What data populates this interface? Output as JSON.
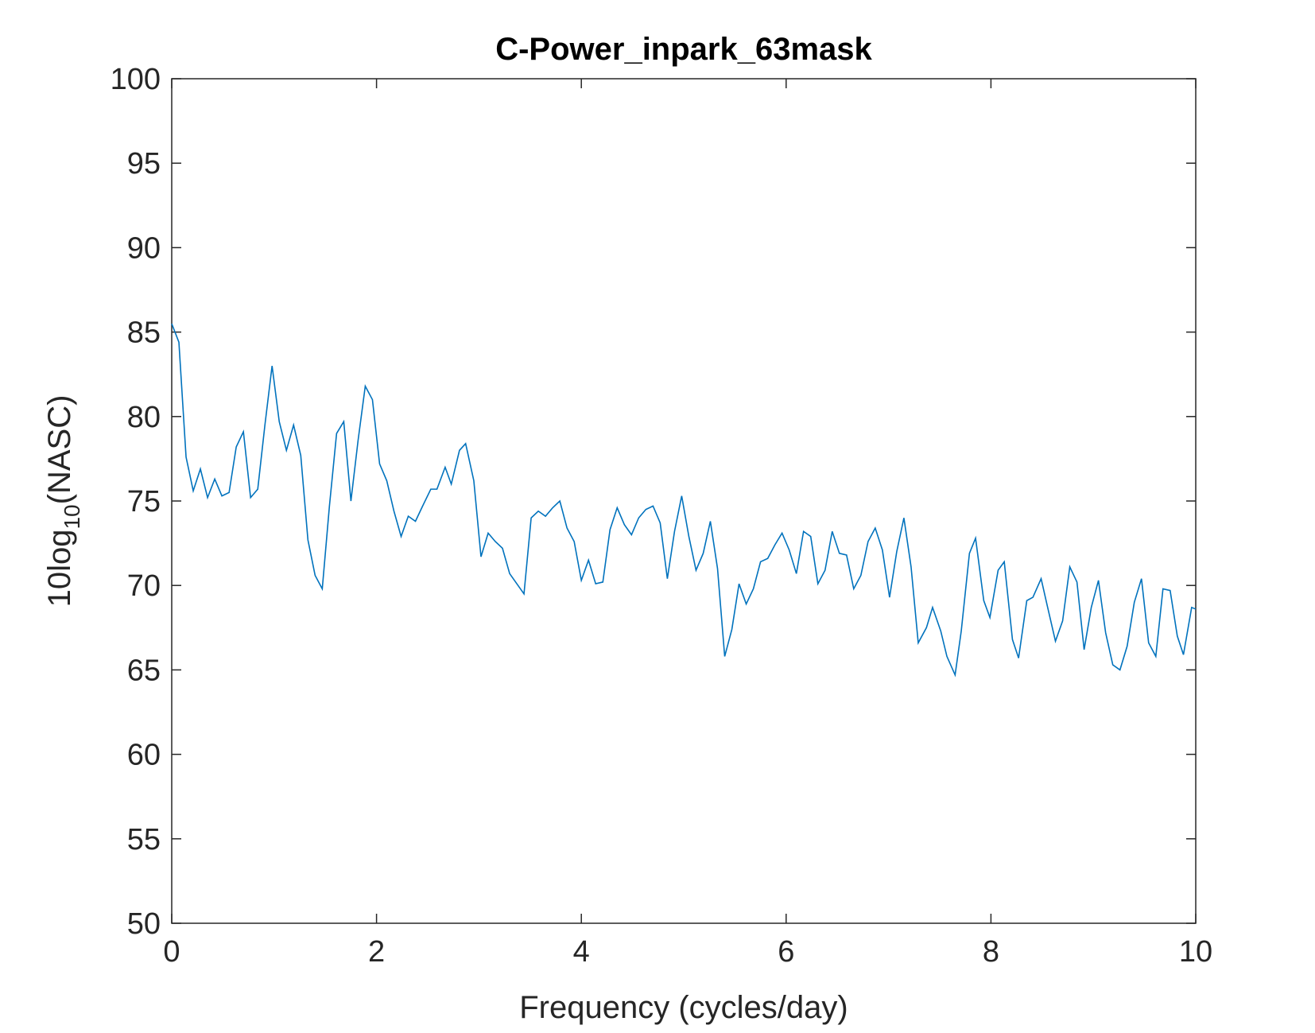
{
  "chart_data": {
    "type": "line",
    "title": "C-Power_inpark_63mask",
    "xlabel": "Frequency (cycles/day)",
    "ylabel_parts": [
      "10log",
      "10",
      "(NASC)"
    ],
    "xlim": [
      0,
      10
    ],
    "ylim": [
      50,
      100
    ],
    "xticks": [
      0,
      2,
      4,
      6,
      8,
      10
    ],
    "yticks": [
      50,
      55,
      60,
      65,
      70,
      75,
      80,
      85,
      90,
      95,
      100
    ],
    "grid": false,
    "series": [
      {
        "color": "#0072bd",
        "x": [
          0,
          0.07,
          0.14,
          0.21,
          0.28,
          0.35,
          0.42,
          0.49,
          0.56,
          0.63,
          0.7,
          0.77,
          0.84,
          0.91,
          0.98,
          1.05,
          1.12,
          1.19,
          1.26,
          1.33,
          1.4,
          1.47,
          1.54,
          1.61,
          1.68,
          1.75,
          1.82,
          1.89,
          1.96,
          2.03,
          2.1,
          2.17,
          2.24,
          2.31,
          2.38,
          2.45,
          2.53,
          2.59,
          2.67,
          2.73,
          2.81,
          2.87,
          2.95,
          3.02,
          3.09,
          3.16,
          3.23,
          3.3,
          3.37,
          3.44,
          3.51,
          3.58,
          3.65,
          3.72,
          3.79,
          3.86,
          3.93,
          4,
          4.07,
          4.14,
          4.21,
          4.28,
          4.35,
          4.42,
          4.49,
          4.56,
          4.63,
          4.7,
          4.77,
          4.84,
          4.91,
          4.98,
          5.05,
          5.12,
          5.19,
          5.26,
          5.33,
          5.4,
          5.47,
          5.54,
          5.61,
          5.68,
          5.75,
          5.82,
          5.89,
          5.96,
          6.03,
          6.1,
          6.17,
          6.24,
          6.31,
          6.38,
          6.45,
          6.52,
          6.59,
          6.66,
          6.73,
          6.8,
          6.87,
          6.94,
          7.01,
          7.08,
          7.15,
          7.22,
          7.29,
          7.37,
          7.43,
          7.51,
          7.57,
          7.65,
          7.71,
          7.79,
          7.85,
          7.93,
          7.99,
          8.07,
          8.13,
          8.21,
          8.27,
          8.35,
          8.41,
          8.49,
          8.55,
          8.63,
          8.7,
          8.77,
          8.84,
          8.91,
          8.98,
          9.05,
          9.12,
          9.19,
          9.26,
          9.33,
          9.4,
          9.47,
          9.54,
          9.61,
          9.68,
          9.75,
          9.82,
          9.88,
          9.96,
          10
        ],
        "values": [
          85.5,
          84.4,
          77.6,
          75.6,
          76.9,
          75.2,
          76.3,
          75.3,
          75.5,
          78.2,
          79.1,
          75.2,
          75.7,
          79.5,
          83.0,
          79.7,
          78.0,
          79.5,
          77.7,
          72.7,
          70.6,
          69.8,
          74.7,
          79.0,
          79.7,
          75.0,
          78.6,
          81.8,
          81.0,
          77.2,
          76.2,
          74.4,
          72.9,
          74.1,
          73.8,
          74.7,
          75.7,
          75.7,
          77.0,
          76.0,
          78.0,
          78.4,
          76.2,
          71.7,
          73.1,
          72.6,
          72.2,
          70.7,
          70.1,
          69.5,
          74.0,
          74.4,
          74.1,
          74.6,
          75.0,
          73.4,
          72.6,
          70.3,
          71.5,
          70.1,
          70.2,
          73.3,
          74.6,
          73.6,
          73.0,
          74.0,
          74.5,
          74.7,
          73.7,
          70.4,
          73.2,
          75.3,
          72.9,
          70.9,
          71.9,
          73.8,
          71.0,
          65.8,
          67.4,
          70.1,
          68.9,
          69.8,
          71.4,
          71.6,
          72.4,
          73.1,
          72.1,
          70.7,
          73.2,
          72.9,
          70.1,
          70.9,
          73.2,
          71.9,
          71.8,
          69.8,
          70.6,
          72.6,
          73.4,
          72.1,
          69.3,
          72.0,
          74.0,
          71.1,
          66.6,
          67.5,
          68.7,
          67.3,
          65.8,
          64.7,
          67.3,
          71.9,
          72.8,
          69.1,
          68.1,
          70.9,
          71.4,
          66.8,
          65.7,
          69.1,
          69.3,
          70.4,
          68.8,
          66.7,
          67.9,
          71.1,
          70.2,
          66.2,
          68.7,
          70.3,
          67.2,
          65.3,
          65.0,
          66.4,
          69.0,
          70.4,
          66.6,
          65.8,
          69.8,
          69.7,
          67.0,
          65.9,
          68.7,
          68.6
        ]
      }
    ]
  }
}
